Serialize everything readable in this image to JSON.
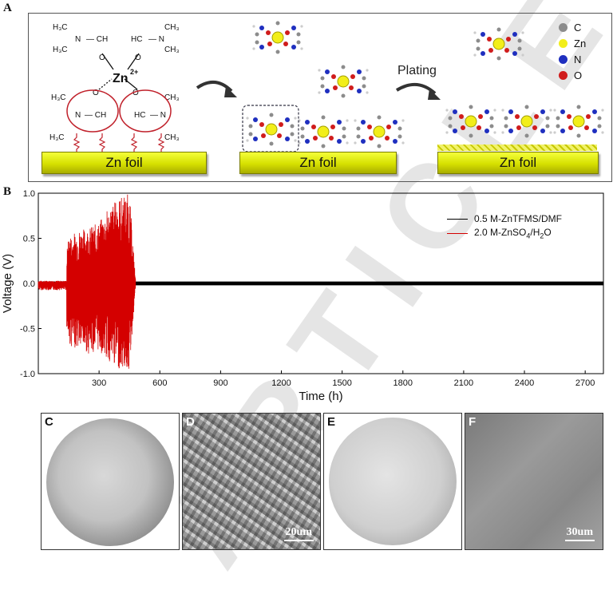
{
  "panelA": {
    "letter": "A",
    "foil_label": "Zn foil",
    "plating_label": "Plating",
    "zn_label": "Zn",
    "zn_charge": "2+",
    "legend": [
      {
        "symbol": "C",
        "color": "#8c8c8c"
      },
      {
        "symbol": "Zn",
        "color": "#f2ee1a"
      },
      {
        "symbol": "N",
        "color": "#1f2fbf"
      },
      {
        "symbol": "O",
        "color": "#d01c1c"
      }
    ]
  },
  "panelB": {
    "letter": "B"
  },
  "chart_data": {
    "type": "line",
    "xlabel": "Time (h)",
    "ylabel": "Voltage (V)",
    "xlim": [
      0,
      2790
    ],
    "ylim": [
      -1.0,
      1.0
    ],
    "xticks": [
      300,
      600,
      900,
      1200,
      1500,
      1800,
      2100,
      2400,
      2700
    ],
    "yticks": [
      "1.0",
      "0.5",
      "0.0",
      "-0.5",
      "-1.0"
    ],
    "legend_position": "top-right",
    "series": [
      {
        "name": "0.5 M-ZnTFMS/DMF",
        "color": "#000000",
        "x_range": [
          0,
          2790
        ],
        "amplitude": 0.02
      },
      {
        "name": "2.0 M-ZnSO4/H2O",
        "color": "#d40000",
        "x": [
          0,
          120,
          150,
          200,
          250,
          300,
          350,
          400,
          450,
          480
        ],
        "y_max": [
          0.02,
          0.03,
          0.52,
          0.6,
          0.62,
          0.68,
          0.85,
          0.96,
          1.0,
          0.05
        ],
        "y_min": [
          -0.05,
          -0.05,
          -0.7,
          -0.72,
          -0.78,
          -0.75,
          -0.88,
          -0.95,
          -0.97,
          -0.05
        ]
      }
    ]
  },
  "legend_text": {
    "l1": "0.5 M-ZnTFMS/DMF",
    "l2_a": "2.0 M-ZnSO",
    "l2_b": "4",
    "l2_c": "/H",
    "l2_d": "2",
    "l2_e": "O"
  },
  "sem": {
    "C": "C",
    "D": "D",
    "E": "E",
    "F": "F",
    "scale_D": "20um",
    "scale_F": "30um"
  },
  "watermark": "ARTICLE"
}
